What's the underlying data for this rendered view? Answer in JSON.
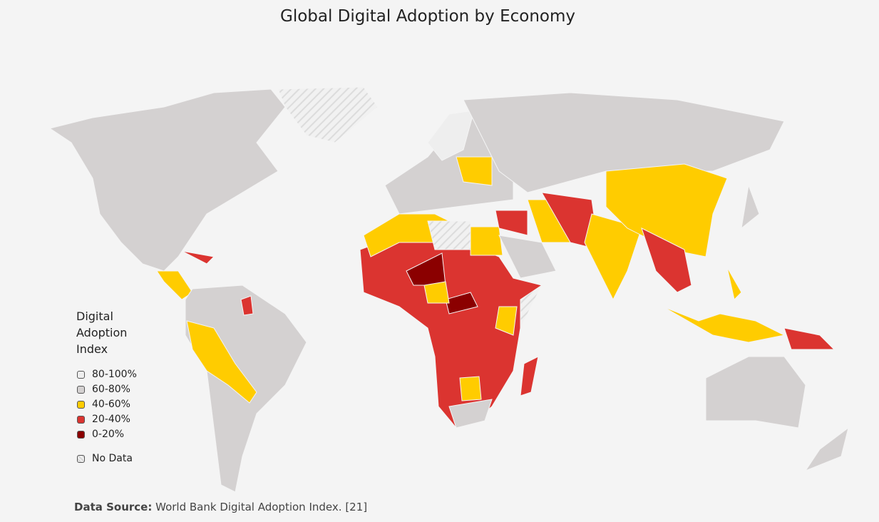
{
  "header": {
    "title": "Global Digital Adoption by Economy"
  },
  "legend": {
    "title": "Digital Adoption Index",
    "items": [
      {
        "label": "80-100%",
        "color": "#eeeeee"
      },
      {
        "label": "60-80%",
        "color": "#d4d1d1"
      },
      {
        "label": "40-60%",
        "color": "#ffcc00"
      },
      {
        "label": "20-40%",
        "color": "#db3430"
      },
      {
        "label": "0-20%",
        "color": "#8b0000"
      }
    ],
    "no_data": "No Data"
  },
  "footer": {
    "label": "Data Source:",
    "text": "World Bank Digital Adoption Index.",
    "ref": "[21]"
  }
}
